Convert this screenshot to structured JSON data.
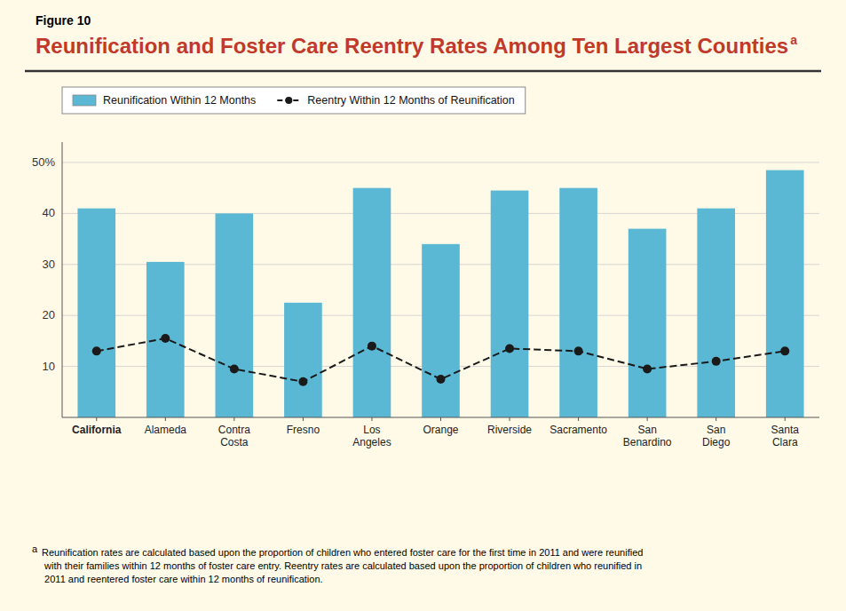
{
  "chart_data": {
    "type": "bar",
    "title": "Reunification and Foster Care Reentry Rates Among Ten Largest Counties",
    "annotations": [
      "Figure 10",
      "a",
      "a",
      " Reunification rates are calculated based upon the proportion of children who entered foster care for the first time in 2011 and were reunified\n  with their families within 12 months of foster care entry. Reentry rates are calculated based upon the proportion of children who reunified in\n  2011 and reentered foster care within 12 months of reunification."
    ],
    "categories": [
      "California",
      "Alameda",
      "Contra\nCosta",
      "Fresno",
      "Los\nAngeles",
      "Orange",
      "Riverside",
      "Sacramento",
      "San\nBenardino",
      "San\nDiego",
      "Santa\nClara"
    ],
    "series": [
      {
        "name": "Reunification Within 12 Months",
        "type": "bar",
        "color": "#5BB8D4",
        "values": [
          41,
          30.5,
          40,
          22.5,
          45,
          34,
          44.5,
          45,
          37,
          41,
          48.5
        ]
      },
      {
        "name": "Reentry Within 12 Months of Reunification",
        "type": "line",
        "color": "#1a1a1a",
        "line_style": "dashed",
        "marker": "circle",
        "values": [
          13,
          15.5,
          9.5,
          7,
          14,
          7.5,
          13.5,
          13,
          9.5,
          11,
          13
        ]
      }
    ],
    "ylim": [
      0,
      54
    ],
    "yticks": [
      10,
      20,
      30,
      40,
      {
        "value": 50,
        "label": "50%"
      }
    ],
    "grid": true,
    "legend": "upper left"
  }
}
